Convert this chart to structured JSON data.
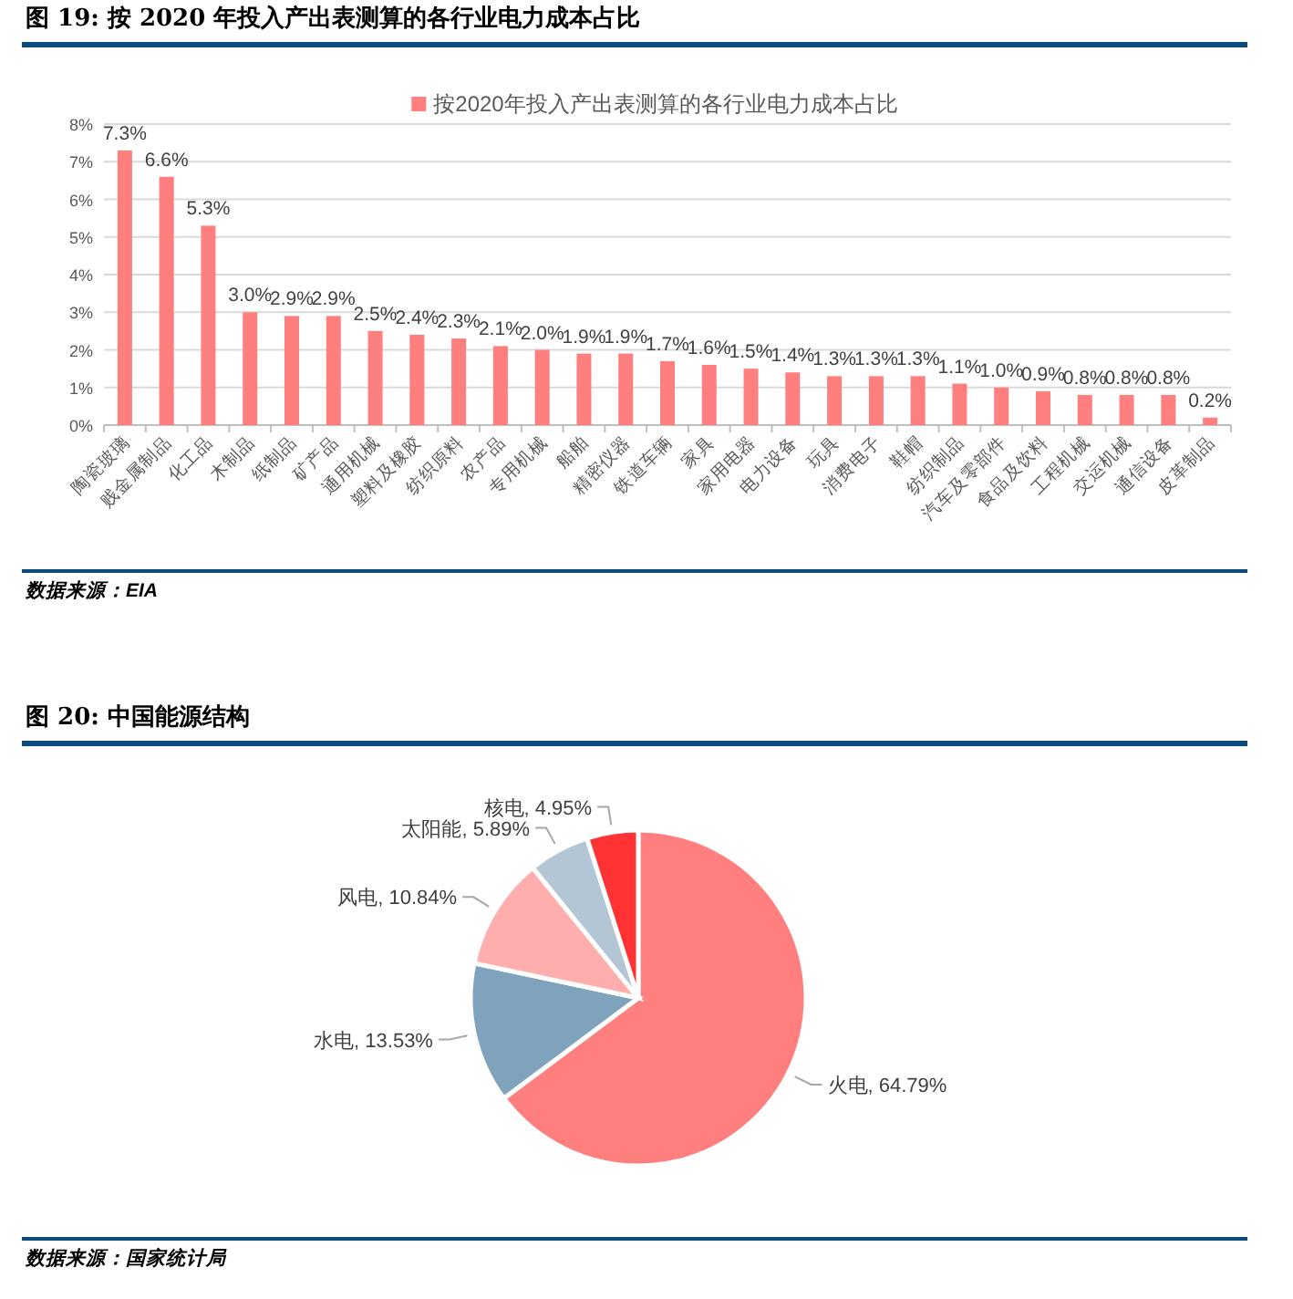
{
  "chart_data": [
    {
      "type": "bar",
      "title": "图 19: 按 2020 年投入产出表测算的各行业电力成本占比",
      "categories": [
        "陶瓷玻璃",
        "贱金属制品",
        "化工品",
        "木制品",
        "纸制品",
        "矿产品",
        "通用机械",
        "塑料及橡胶",
        "纺织原料",
        "农产品",
        "专用机械",
        "船舶",
        "精密仪器",
        "铁道车辆",
        "家具",
        "家用电器",
        "电力设备",
        "玩具",
        "消费电子",
        "鞋帽",
        "纺织制品",
        "汽车及零部件",
        "食品及饮料",
        "工程机械",
        "交运机械",
        "通信设备",
        "皮革制品"
      ],
      "series": [
        {
          "name": "按2020年投入产出表测算的各行业电力成本占比",
          "color": "#ff7f7f",
          "values": [
            7.3,
            6.6,
            5.3,
            3.0,
            2.9,
            2.9,
            2.5,
            2.4,
            2.3,
            2.1,
            2.0,
            1.9,
            1.9,
            1.7,
            1.6,
            1.5,
            1.4,
            1.3,
            1.3,
            1.3,
            1.1,
            1.0,
            0.9,
            0.8,
            0.8,
            0.8,
            0.2
          ],
          "value_labels": [
            "7.3%",
            "6.6%",
            "5.3%",
            "3.0%",
            "2.9%",
            "2.9%",
            "2.5%",
            "2.4%",
            "2.3%",
            "2.1%",
            "2.0%",
            "1.9%",
            "1.9%",
            "1.7%",
            "1.6%",
            "1.5%",
            "1.4%",
            "1.3%",
            "1.3%",
            "1.3%",
            "1.1%",
            "1.0%",
            "0.9%",
            "0.8%",
            "0.8%",
            "0.8%",
            "0.2%"
          ]
        }
      ],
      "ylim": [
        0,
        8
      ],
      "yticks": [
        {
          "value": 0,
          "label": "0%"
        },
        {
          "value": 1,
          "label": "1%"
        },
        {
          "value": 2,
          "label": "2%"
        },
        {
          "value": 3,
          "label": "3%"
        },
        {
          "value": 4,
          "label": "4%"
        },
        {
          "value": 5,
          "label": "5%"
        },
        {
          "value": 6,
          "label": "6%"
        },
        {
          "value": 7,
          "label": "7%"
        },
        {
          "value": 8,
          "label": "8%"
        }
      ],
      "grid": "y",
      "legend": "top",
      "annotations": [
        "数据来源：EIA"
      ]
    },
    {
      "type": "pie",
      "title": "图 20: 中国能源结构",
      "categories": [
        "火电",
        "水电",
        "风电",
        "太阳能",
        "核电"
      ],
      "values": [
        64.79,
        13.53,
        10.84,
        5.89,
        4.95
      ],
      "colors": [
        "#ff7f7f",
        "#7fa3bd",
        "#ffadad",
        "#b3c6d6",
        "#ff3333"
      ],
      "value_labels": [
        ", 64.79%",
        ", 13.53%",
        ", 10.84%",
        ", 5.89%",
        ", 4.95%"
      ],
      "annotations": [
        "数据来源：国家统计局"
      ]
    }
  ]
}
